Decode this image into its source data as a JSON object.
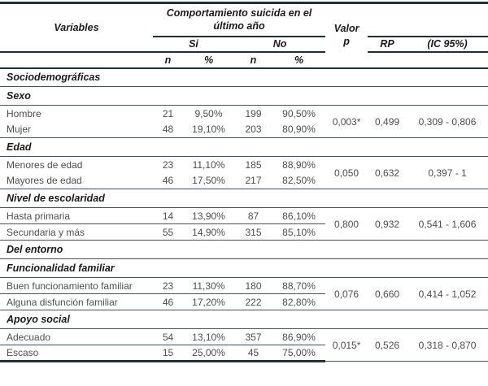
{
  "colors": {
    "rule_dark": "#1e3337",
    "rule_thin": "#44525a",
    "header_text": "#1b1b1b",
    "body_text": "#4e4e4e"
  },
  "header": {
    "variables": "Variables",
    "group_title": "Comportamiento suicida en el último año",
    "valor_line1": "Valor",
    "valor_line2": "p",
    "si": "Si",
    "no": "No",
    "n_si": "n",
    "pct_si": "%",
    "n_no": "n",
    "pct_no": "%",
    "rp": "RP",
    "ic": "(IC 95%)"
  },
  "sections": {
    "sociodemograficas": "Sociodemográficas",
    "sexo": "Sexo",
    "edad": "Edad",
    "escolaridad": "Nivel de escolaridad",
    "entorno": "Del entorno",
    "funcionalidad": "Funcionalidad familiar",
    "apoyo": "Apoyo social"
  },
  "groups": {
    "sexo": {
      "row1": {
        "label": "Hombre",
        "n_si": "21",
        "pct_si": "9,50%",
        "n_no": "199",
        "pct_no": "90,50%"
      },
      "row2": {
        "label": "Mujer",
        "n_si": "48",
        "pct_si": "19,10%",
        "n_no": "203",
        "pct_no": "80,90%"
      },
      "p": "0,003*",
      "rp": "0,499",
      "ic": "0,309 - 0,806"
    },
    "edad": {
      "row1": {
        "label": "Menores de edad",
        "n_si": "23",
        "pct_si": "11,10%",
        "n_no": "185",
        "pct_no": "88,90%"
      },
      "row2": {
        "label": "Mayores de edad",
        "n_si": "46",
        "pct_si": "17,50%",
        "n_no": "217",
        "pct_no": "82,50%"
      },
      "p": "0,050",
      "rp": "0,632",
      "ic": "0,397 - 1"
    },
    "escolaridad": {
      "row1": {
        "label": "Hasta primaria",
        "n_si": "14",
        "pct_si": "13,90%",
        "n_no": "87",
        "pct_no": "86,10%"
      },
      "row2": {
        "label": "Secundaria y más",
        "n_si": "55",
        "pct_si": "14,90%",
        "n_no": "315",
        "pct_no": "85,10%"
      },
      "p": "0,800",
      "rp": "0,932",
      "ic": "0,541 - 1,606"
    },
    "funcionalidad": {
      "row1": {
        "label": "Buen funcionamiento familiar",
        "n_si": "23",
        "pct_si": "11,30%",
        "n_no": "180",
        "pct_no": "88,70%"
      },
      "row2": {
        "label": "Alguna disfunción familiar",
        "n_si": "46",
        "pct_si": "17,20%",
        "n_no": "222",
        "pct_no": "82,80%"
      },
      "p": "0,076",
      "rp": "0,660",
      "ic": "0,414 - 1,052"
    },
    "apoyo": {
      "row1": {
        "label": "Adecuado",
        "n_si": "54",
        "pct_si": "13,10%",
        "n_no": "357",
        "pct_no": "86,90%"
      },
      "row2": {
        "label": "Escaso",
        "n_si": "15",
        "pct_si": "25,00%",
        "n_no": "45",
        "pct_no": "75,00%"
      },
      "p": "0,015*",
      "rp": "0,526",
      "ic": "0,318 - 0,870"
    }
  }
}
